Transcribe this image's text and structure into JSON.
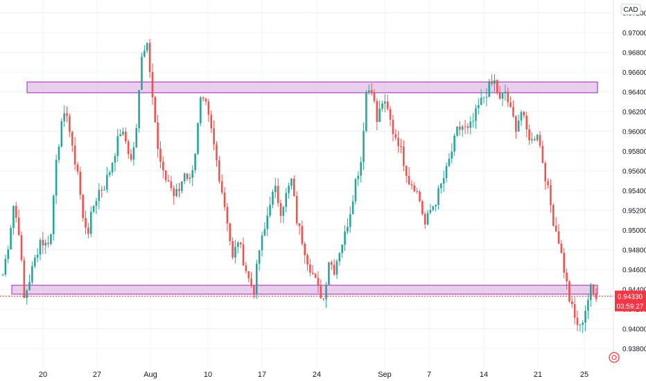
{
  "chart_data": {
    "type": "candlestick",
    "currency_label": "CAD",
    "y_ticks": [
      "0.97200",
      "0.97000",
      "0.96800",
      "0.96600",
      "0.96400",
      "0.96200",
      "0.96000",
      "0.95800",
      "0.95600",
      "0.95400",
      "0.95200",
      "0.95000",
      "0.94800",
      "0.94600",
      "0.94400",
      "0.94200",
      "0.94000",
      "0.93800"
    ],
    "x_ticks": [
      "20",
      "27",
      "Aug",
      "10",
      "17",
      "24",
      "Sep",
      "7",
      "14",
      "21",
      "25"
    ],
    "ylim": [
      0.937,
      0.9725
    ],
    "current_price": {
      "value": "0.94330",
      "countdown": "03:59:27",
      "color": "#f23645"
    },
    "zones": [
      {
        "name": "resistance-zone",
        "low": 0.9639,
        "high": 0.965,
        "color": "#e1bee7"
      },
      {
        "name": "support-zone",
        "low": 0.9435,
        "high": 0.9444,
        "color": "#e1bee7"
      }
    ],
    "colors": {
      "up": "#26a69a",
      "down": "#ef5350",
      "zone_border": "#9c27b0",
      "grid": "#f0f3fa"
    },
    "close_path": [
      [
        0.9455,
        0.9485,
        0.9525,
        0.95,
        0.943,
        0.945,
        0.947,
        0.949,
        0.9485,
        0.9495
      ],
      [
        0.9575,
        0.9605,
        0.962,
        0.958,
        0.956,
        0.951,
        0.95,
        0.9525,
        0.954,
        0.9545,
        0.956
      ],
      [
        0.958,
        0.96,
        0.959,
        0.957,
        0.96,
        0.968,
        0.969,
        0.964,
        0.958,
        0.9555
      ],
      [
        0.955,
        0.9535,
        0.954,
        0.956,
        0.955,
        0.958,
        0.963,
        0.9625,
        0.96
      ],
      [
        0.957,
        0.954,
        0.951,
        0.947,
        0.949,
        0.947,
        0.945,
        0.944,
        0.948,
        0.95,
        0.953
      ],
      [
        0.954,
        0.952,
        0.9535,
        0.955,
        0.951,
        0.949,
        0.947,
        0.9455,
        0.944,
        0.943
      ],
      [
        0.947,
        0.946,
        0.948,
        0.9495,
        0.952,
        0.955,
        0.957,
        0.964,
        0.9645,
        0.961
      ],
      [
        0.963,
        0.962,
        0.96,
        0.959,
        0.957,
        0.955,
        0.9545,
        0.953,
        0.9505
      ],
      [
        0.952,
        0.953,
        0.9545,
        0.956,
        0.958,
        0.96,
        0.9605,
        0.96,
        0.961,
        0.9625,
        0.9635
      ],
      [
        0.9645,
        0.965,
        0.963,
        0.964,
        0.962,
        0.9605,
        0.962,
        0.96,
        0.959,
        0.96
      ],
      [
        0.957,
        0.954,
        0.951,
        0.949,
        0.946,
        0.943,
        0.941,
        0.94,
        0.942,
        0.944,
        0.943
      ]
    ]
  }
}
